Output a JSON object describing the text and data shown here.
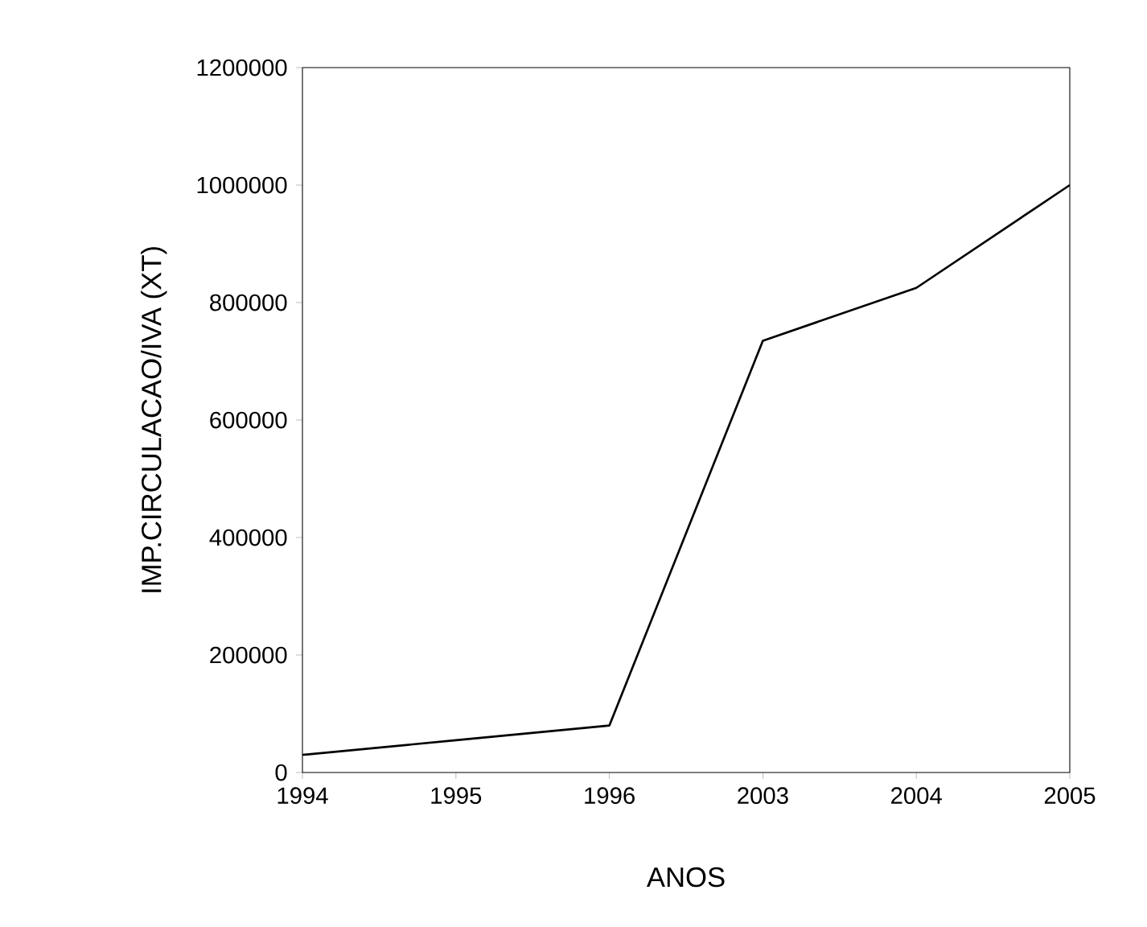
{
  "chart_data": {
    "type": "line",
    "xlabel": "ANOS",
    "ylabel": "IMP.CIRCULACAO/IVA (XT)",
    "categories": [
      "1994",
      "1995",
      "1996",
      "2003",
      "2004",
      "2005"
    ],
    "values": [
      30000,
      55000,
      80000,
      735000,
      825000,
      1000000
    ],
    "color": "#000000",
    "ylim": [
      0,
      1200000
    ],
    "yticks": [
      0,
      200000,
      400000,
      600000,
      800000,
      1000000,
      1200000
    ],
    "grid": false,
    "marker": "none",
    "line_style": "solid"
  }
}
